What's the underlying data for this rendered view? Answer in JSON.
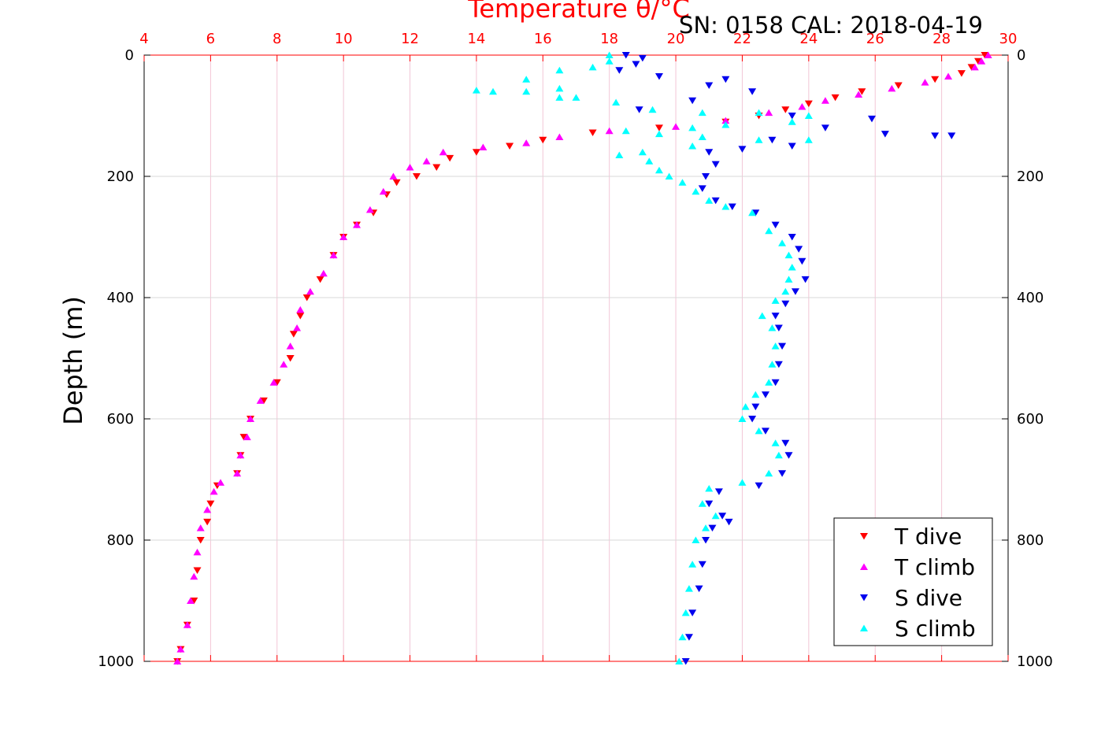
{
  "chart_data": {
    "type": "scatter",
    "title": "Temperature θ/°C",
    "annotation": "SN: 0158  CAL: 2018-04-19",
    "xlabel": "Temperature θ/°C",
    "ylabel": "Depth (m)",
    "xlim": [
      4,
      30
    ],
    "ylim": [
      1000,
      0
    ],
    "x_ticks": [
      4,
      6,
      8,
      10,
      12,
      14,
      16,
      18,
      20,
      22,
      24,
      26,
      28,
      30
    ],
    "y_ticks": [
      0,
      200,
      400,
      600,
      800,
      1000
    ],
    "grid": true,
    "legend_position": "bottom-right",
    "series": [
      {
        "name": "T dive",
        "color": "#ff0000",
        "marker": "triangle-down",
        "points": [
          [
            29.3,
            0
          ],
          [
            29.1,
            10
          ],
          [
            28.9,
            20
          ],
          [
            28.6,
            30
          ],
          [
            27.8,
            40
          ],
          [
            26.7,
            50
          ],
          [
            25.6,
            60
          ],
          [
            24.8,
            70
          ],
          [
            24.0,
            80
          ],
          [
            23.3,
            90
          ],
          [
            22.5,
            100
          ],
          [
            21.5,
            110
          ],
          [
            19.5,
            120
          ],
          [
            17.5,
            128
          ],
          [
            16.0,
            140
          ],
          [
            15.0,
            150
          ],
          [
            14.0,
            160
          ],
          [
            13.2,
            170
          ],
          [
            12.8,
            185
          ],
          [
            12.2,
            200
          ],
          [
            11.6,
            210
          ],
          [
            11.3,
            230
          ],
          [
            10.9,
            260
          ],
          [
            10.4,
            280
          ],
          [
            10.0,
            300
          ],
          [
            9.7,
            330
          ],
          [
            9.3,
            370
          ],
          [
            8.9,
            400
          ],
          [
            8.7,
            430
          ],
          [
            8.5,
            460
          ],
          [
            8.4,
            500
          ],
          [
            8.0,
            540
          ],
          [
            7.6,
            570
          ],
          [
            7.2,
            600
          ],
          [
            7.0,
            630
          ],
          [
            6.9,
            660
          ],
          [
            6.8,
            690
          ],
          [
            6.2,
            710
          ],
          [
            6.0,
            740
          ],
          [
            5.9,
            770
          ],
          [
            5.7,
            800
          ],
          [
            5.6,
            850
          ],
          [
            5.5,
            900
          ],
          [
            5.3,
            940
          ],
          [
            5.1,
            980
          ],
          [
            5.0,
            1000
          ]
        ]
      },
      {
        "name": "T climb",
        "color": "#ff00ff",
        "marker": "triangle-up",
        "points": [
          [
            29.4,
            0
          ],
          [
            29.2,
            10
          ],
          [
            29.0,
            20
          ],
          [
            28.2,
            35
          ],
          [
            27.5,
            45
          ],
          [
            26.5,
            55
          ],
          [
            25.5,
            65
          ],
          [
            24.5,
            75
          ],
          [
            23.8,
            85
          ],
          [
            22.8,
            95
          ],
          [
            21.5,
            108
          ],
          [
            20.0,
            118
          ],
          [
            18.0,
            125
          ],
          [
            16.5,
            135
          ],
          [
            15.5,
            145
          ],
          [
            14.2,
            152
          ],
          [
            13.0,
            160
          ],
          [
            12.5,
            175
          ],
          [
            12.0,
            185
          ],
          [
            11.5,
            200
          ],
          [
            11.2,
            225
          ],
          [
            10.8,
            255
          ],
          [
            10.4,
            280
          ],
          [
            10.0,
            300
          ],
          [
            9.7,
            330
          ],
          [
            9.4,
            360
          ],
          [
            9.0,
            390
          ],
          [
            8.7,
            420
          ],
          [
            8.6,
            450
          ],
          [
            8.4,
            480
          ],
          [
            8.2,
            510
          ],
          [
            7.9,
            540
          ],
          [
            7.5,
            570
          ],
          [
            7.2,
            600
          ],
          [
            7.1,
            630
          ],
          [
            6.9,
            660
          ],
          [
            6.8,
            690
          ],
          [
            6.3,
            705
          ],
          [
            6.1,
            720
          ],
          [
            5.9,
            750
          ],
          [
            5.7,
            780
          ],
          [
            5.6,
            820
          ],
          [
            5.5,
            860
          ],
          [
            5.4,
            900
          ],
          [
            5.3,
            940
          ],
          [
            5.1,
            980
          ],
          [
            5.0,
            1000
          ]
        ]
      },
      {
        "name": "S dive",
        "color": "#0000ee",
        "marker": "triangle-down",
        "points": [
          [
            18.5,
            0
          ],
          [
            19.0,
            5
          ],
          [
            18.8,
            15
          ],
          [
            18.3,
            25
          ],
          [
            19.5,
            35
          ],
          [
            21.5,
            40
          ],
          [
            21.0,
            50
          ],
          [
            22.3,
            60
          ],
          [
            20.5,
            75
          ],
          [
            18.9,
            90
          ],
          [
            23.5,
            100
          ],
          [
            25.9,
            105
          ],
          [
            24.5,
            120
          ],
          [
            26.3,
            130
          ],
          [
            27.8,
            133
          ],
          [
            28.3,
            133
          ],
          [
            22.9,
            140
          ],
          [
            23.5,
            150
          ],
          [
            22.0,
            155
          ],
          [
            21.0,
            160
          ],
          [
            21.2,
            180
          ],
          [
            20.9,
            200
          ],
          [
            20.8,
            220
          ],
          [
            21.2,
            240
          ],
          [
            21.7,
            250
          ],
          [
            22.4,
            260
          ],
          [
            23.0,
            280
          ],
          [
            23.5,
            300
          ],
          [
            23.7,
            320
          ],
          [
            23.8,
            340
          ],
          [
            23.9,
            370
          ],
          [
            23.6,
            390
          ],
          [
            23.3,
            410
          ],
          [
            23.0,
            430
          ],
          [
            23.1,
            450
          ],
          [
            23.2,
            480
          ],
          [
            23.1,
            510
          ],
          [
            23.0,
            540
          ],
          [
            22.7,
            560
          ],
          [
            22.4,
            580
          ],
          [
            22.3,
            600
          ],
          [
            22.7,
            620
          ],
          [
            23.3,
            640
          ],
          [
            23.4,
            660
          ],
          [
            23.2,
            690
          ],
          [
            22.5,
            710
          ],
          [
            21.3,
            720
          ],
          [
            21.0,
            740
          ],
          [
            21.4,
            760
          ],
          [
            21.6,
            770
          ],
          [
            21.1,
            780
          ],
          [
            20.9,
            800
          ],
          [
            20.8,
            840
          ],
          [
            20.7,
            880
          ],
          [
            20.5,
            920
          ],
          [
            20.4,
            960
          ],
          [
            20.3,
            1000
          ]
        ]
      },
      {
        "name": "S climb",
        "color": "#00ffff",
        "marker": "triangle-up",
        "points": [
          [
            18.0,
            0
          ],
          [
            18.0,
            10
          ],
          [
            17.5,
            20
          ],
          [
            16.5,
            25
          ],
          [
            15.5,
            40
          ],
          [
            14.0,
            58
          ],
          [
            14.5,
            60
          ],
          [
            15.5,
            60
          ],
          [
            16.5,
            55
          ],
          [
            17.0,
            70
          ],
          [
            16.5,
            70
          ],
          [
            18.2,
            78
          ],
          [
            19.3,
            90
          ],
          [
            20.8,
            95
          ],
          [
            22.5,
            95
          ],
          [
            24.0,
            100
          ],
          [
            23.5,
            110
          ],
          [
            21.5,
            115
          ],
          [
            20.5,
            120
          ],
          [
            19.5,
            130
          ],
          [
            18.5,
            125
          ],
          [
            20.8,
            135
          ],
          [
            22.5,
            140
          ],
          [
            24.0,
            140
          ],
          [
            20.5,
            150
          ],
          [
            19.0,
            160
          ],
          [
            18.3,
            165
          ],
          [
            19.2,
            175
          ],
          [
            19.5,
            190
          ],
          [
            19.8,
            200
          ],
          [
            20.2,
            210
          ],
          [
            20.6,
            225
          ],
          [
            21.0,
            240
          ],
          [
            21.5,
            250
          ],
          [
            22.3,
            260
          ],
          [
            22.8,
            290
          ],
          [
            23.2,
            310
          ],
          [
            23.4,
            330
          ],
          [
            23.5,
            350
          ],
          [
            23.4,
            370
          ],
          [
            23.3,
            390
          ],
          [
            23.0,
            405
          ],
          [
            22.6,
            430
          ],
          [
            22.9,
            450
          ],
          [
            23.0,
            480
          ],
          [
            22.9,
            510
          ],
          [
            22.8,
            540
          ],
          [
            22.4,
            560
          ],
          [
            22.1,
            580
          ],
          [
            22.0,
            600
          ],
          [
            22.5,
            620
          ],
          [
            23.0,
            640
          ],
          [
            23.1,
            660
          ],
          [
            22.8,
            690
          ],
          [
            22.0,
            705
          ],
          [
            21.0,
            715
          ],
          [
            20.8,
            740
          ],
          [
            21.2,
            760
          ],
          [
            20.9,
            780
          ],
          [
            20.6,
            800
          ],
          [
            20.5,
            840
          ],
          [
            20.4,
            880
          ],
          [
            20.3,
            920
          ],
          [
            20.2,
            960
          ],
          [
            20.1,
            1000
          ]
        ]
      }
    ]
  }
}
